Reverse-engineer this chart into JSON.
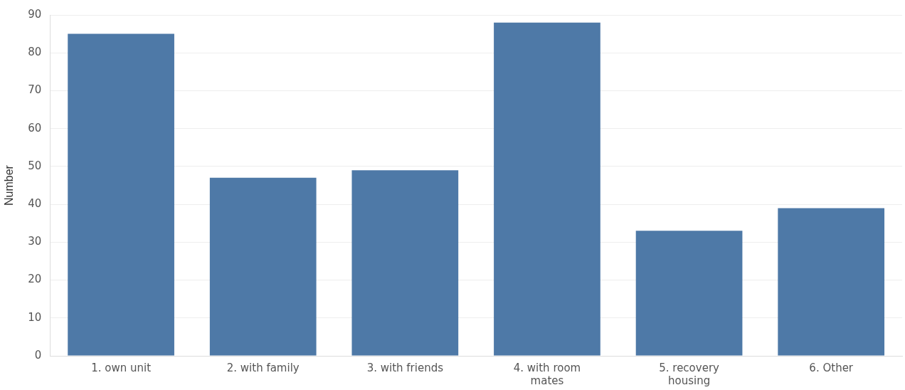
{
  "chart_data": {
    "type": "bar",
    "ylabel": "Number",
    "categories": [
      "1. own unit",
      "2. with family",
      "3. with friends",
      "4. with room mates",
      "5. recovery housing",
      "6. Other"
    ],
    "values": [
      85,
      47,
      49,
      88,
      33,
      39
    ],
    "color": "#4e79a7",
    "ylim": [
      0,
      90
    ],
    "yticks": [
      0,
      10,
      20,
      30,
      40,
      50,
      60,
      70,
      80,
      90
    ],
    "grid": "y",
    "legend": false
  }
}
